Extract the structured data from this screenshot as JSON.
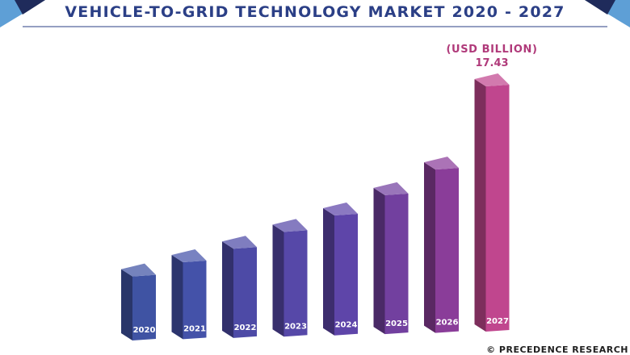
{
  "chart_data": {
    "type": "bar",
    "title": "VEHICLE-TO-GRID TECHNOLOGY MARKET 2020 - 2027",
    "unit_label": "(USD BILLION)",
    "categories": [
      "2020",
      "2021",
      "2022",
      "2023",
      "2024",
      "2025",
      "2026",
      "2027"
    ],
    "values": [
      4.55,
      5.47,
      6.34,
      7.45,
      8.53,
      9.88,
      11.61,
      17.43
    ],
    "data_labels": {
      "2027": "17.43"
    },
    "ylim": [
      0,
      17.43
    ],
    "xlabel": "",
    "ylabel": "",
    "grid": false,
    "colors": [
      "#3f53a3",
      "#4452a9",
      "#4d4aa6",
      "#5648a8",
      "#5e45a9",
      "#72409f",
      "#8a3d99",
      "#c0468e"
    ]
  },
  "source": {
    "label": "© PRECEDENCE RESEARCH"
  },
  "colors": {
    "title": "#2b3f86",
    "accent": "#b03a7a",
    "corner_dark": "#1f2b5b",
    "corner_light": "#5e9fd6"
  }
}
